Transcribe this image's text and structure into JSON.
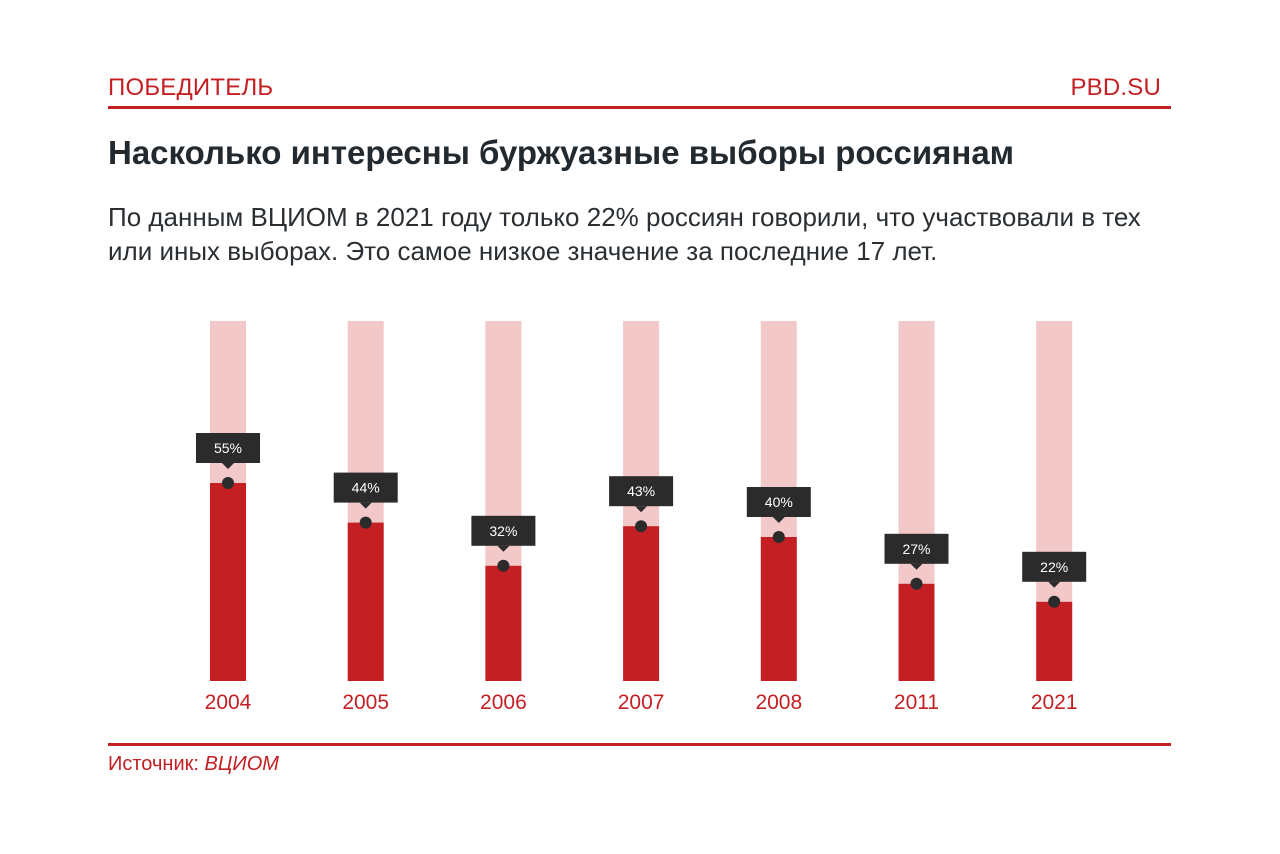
{
  "header": {
    "brand": "ПОБЕДИТЕЛЬ",
    "site": "PBD.SU"
  },
  "title": "Насколько интересны буржуазные выборы россиянам",
  "subtitle": "По данным ВЦИОМ в 2021 году только 22% россиян говорили, что участвовали в тех или иных выборах. Это самое низкое значение за последние 17 лет.",
  "source": {
    "label": "Источник: ",
    "value": "ВЦИОМ"
  },
  "colors": {
    "accent": "#c42024",
    "track": "#f2c8c9",
    "label_bg": "#2b2b2b",
    "label_text": "#ffffff",
    "dot": "#2b2b2b"
  },
  "chart_data": {
    "type": "bar",
    "categories": [
      "2004",
      "2005",
      "2006",
      "2007",
      "2008",
      "2011",
      "2021"
    ],
    "values": [
      55,
      44,
      32,
      43,
      40,
      27,
      22
    ],
    "value_labels": [
      "55%",
      "44%",
      "32%",
      "43%",
      "40%",
      "27%",
      "22%"
    ],
    "ylim": [
      0,
      100
    ],
    "grid": false,
    "legend": "none"
  }
}
